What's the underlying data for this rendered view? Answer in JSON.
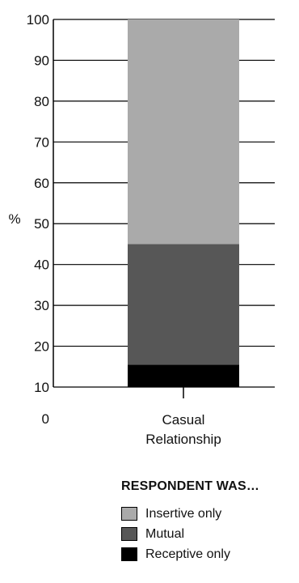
{
  "chart_data": {
    "type": "bar",
    "stacked": true,
    "categories": [
      "Casual\nRelationship"
    ],
    "series": [
      {
        "name": "Receptive only",
        "values": [
          15.5
        ],
        "color": "#000000"
      },
      {
        "name": "Mutual",
        "values": [
          29.5
        ],
        "color": "#575757"
      },
      {
        "name": "Insertive only",
        "values": [
          55
        ],
        "color": "#aaaaaa"
      }
    ],
    "ylim": [
      0,
      100
    ],
    "yticks": [
      10,
      20,
      30,
      40,
      50,
      60,
      70,
      80,
      90,
      100
    ],
    "zero_label": "0",
    "unit_label": "%",
    "grid": true,
    "legend": {
      "title": "RESPONDENT WAS…",
      "position": "bottom",
      "order": [
        "Insertive only",
        "Mutual",
        "Receptive only"
      ]
    }
  }
}
